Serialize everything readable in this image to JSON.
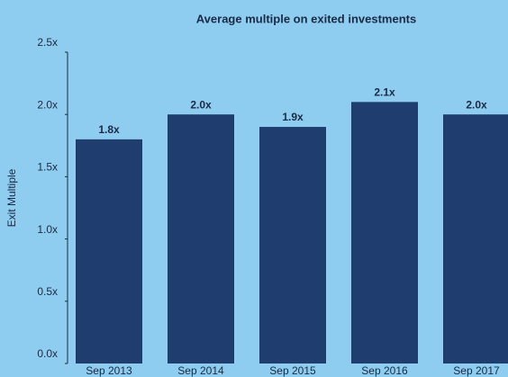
{
  "chart_data": {
    "type": "bar",
    "title": "Average multiple on exited investments",
    "y_label": "Exit Multiple",
    "categories": [
      "Sep 2013",
      "Sep 2014",
      "Sep 2015",
      "Sep 2016",
      "Sep 2017"
    ],
    "values": [
      1.8,
      2.0,
      1.9,
      2.1,
      2.0
    ],
    "value_labels": [
      "1.8x",
      "2.0x",
      "1.9x",
      "2.1x",
      "2.0x"
    ],
    "color": "#1f3d6e",
    "ylim": [
      0,
      2.5
    ],
    "yticks": [
      {
        "value": 0,
        "label": "0.0x"
      },
      {
        "value": 0.5,
        "label": "0.5x"
      },
      {
        "value": 1,
        "label": "1.0x"
      },
      {
        "value": 1.5,
        "label": "1.5x"
      },
      {
        "value": 2,
        "label": "2.0x"
      },
      {
        "value": 2.5,
        "label": "2.5x"
      }
    ],
    "grid": false
  }
}
